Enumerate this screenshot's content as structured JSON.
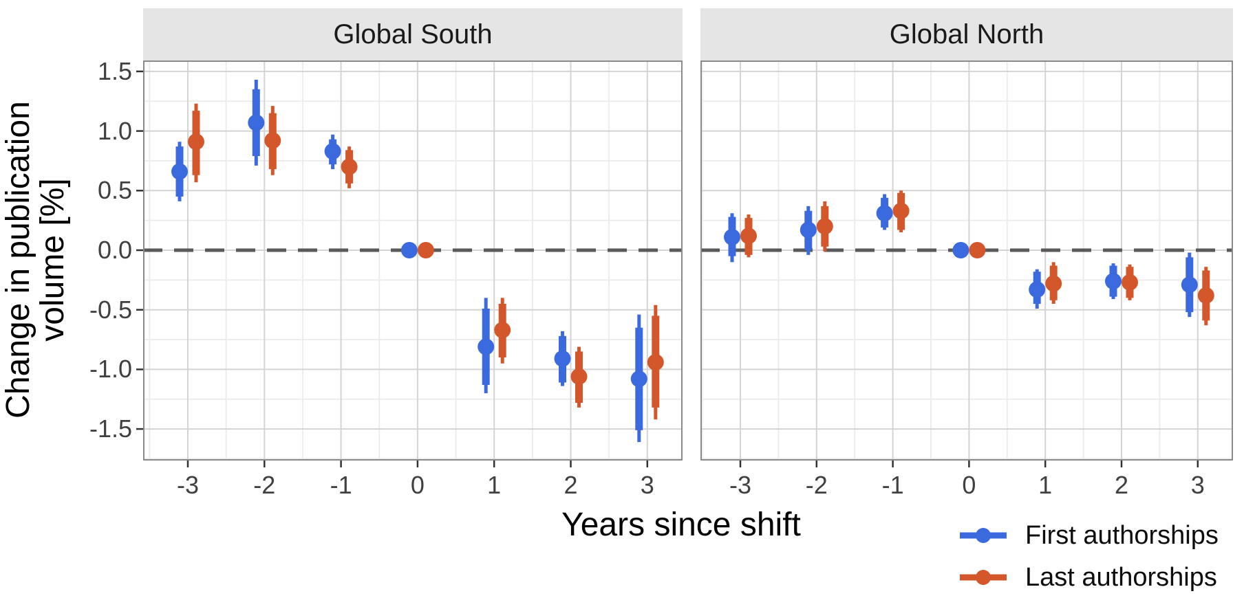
{
  "figure": {
    "y_axis_title_line1": "Change in publication",
    "y_axis_title_line2": "volume [%]",
    "x_axis_title": "Years since shift"
  },
  "legend": {
    "position": "bottom-right",
    "items": [
      {
        "label": "First authorships",
        "color": "#3B69DE"
      },
      {
        "label": "Last authorships",
        "color": "#D4572B"
      }
    ]
  },
  "chart_data": {
    "type": "scatter",
    "subtype": "pointrange-with-inner-outer-intervals",
    "title": "",
    "xlabel": "Years since shift",
    "ylabel": "Change in publication volume [%]",
    "categories": [
      -3,
      -2,
      -1,
      0,
      1,
      2,
      3
    ],
    "x_tick_labels": [
      "-3",
      "-2",
      "-1",
      "0",
      "1",
      "2",
      "3"
    ],
    "y_ticks": [
      1.5,
      1.0,
      0.5,
      0.0,
      -0.5,
      -1.0,
      -1.5
    ],
    "y_tick_labels": [
      "1.5",
      "1.0",
      "0.5",
      "0.0",
      "-0.5",
      "-1.0",
      "-1.5"
    ],
    "ylim": [
      -1.76,
      1.59
    ],
    "grid": true,
    "reference_line_y": 0,
    "reference_line_style": "dashed",
    "legend_position": "bottom-right",
    "facets": [
      {
        "label": "Global South",
        "series": [
          {
            "name": "First authorships",
            "color": "#3B69DE",
            "points": [
              {
                "x": -3,
                "y": 0.66,
                "inner": [
                  0.45,
                  0.87
                ],
                "outer": [
                  0.41,
                  0.91
                ]
              },
              {
                "x": -2,
                "y": 1.07,
                "inner": [
                  0.79,
                  1.35
                ],
                "outer": [
                  0.71,
                  1.43
                ]
              },
              {
                "x": -1,
                "y": 0.83,
                "inner": [
                  0.72,
                  0.93
                ],
                "outer": [
                  0.68,
                  0.97
                ]
              },
              {
                "x": 0,
                "y": 0.0,
                "inner": [
                  0.0,
                  0.0
                ],
                "outer": [
                  0.0,
                  0.0
                ]
              },
              {
                "x": 1,
                "y": -0.81,
                "inner": [
                  -1.13,
                  -0.49
                ],
                "outer": [
                  -1.2,
                  -0.4
                ]
              },
              {
                "x": 2,
                "y": -0.91,
                "inner": [
                  -1.11,
                  -0.72
                ],
                "outer": [
                  -1.14,
                  -0.68
                ]
              },
              {
                "x": 3,
                "y": -1.08,
                "inner": [
                  -1.51,
                  -0.65
                ],
                "outer": [
                  -1.61,
                  -0.54
                ]
              }
            ]
          },
          {
            "name": "Last authorships",
            "color": "#D4572B",
            "points": [
              {
                "x": -3,
                "y": 0.91,
                "inner": [
                  0.63,
                  1.17
                ],
                "outer": [
                  0.57,
                  1.23
                ]
              },
              {
                "x": -2,
                "y": 0.92,
                "inner": [
                  0.68,
                  1.15
                ],
                "outer": [
                  0.63,
                  1.21
                ]
              },
              {
                "x": -1,
                "y": 0.7,
                "inner": [
                  0.56,
                  0.84
                ],
                "outer": [
                  0.52,
                  0.87
                ]
              },
              {
                "x": 0,
                "y": 0.0,
                "inner": [
                  0.0,
                  0.0
                ],
                "outer": [
                  0.0,
                  0.0
                ]
              },
              {
                "x": 1,
                "y": -0.67,
                "inner": [
                  -0.9,
                  -0.45
                ],
                "outer": [
                  -0.95,
                  -0.4
                ]
              },
              {
                "x": 2,
                "y": -1.06,
                "inner": [
                  -1.28,
                  -0.85
                ],
                "outer": [
                  -1.32,
                  -0.81
                ]
              },
              {
                "x": 3,
                "y": -0.94,
                "inner": [
                  -1.32,
                  -0.55
                ],
                "outer": [
                  -1.42,
                  -0.46
                ]
              }
            ]
          }
        ]
      },
      {
        "label": "Global North",
        "series": [
          {
            "name": "First authorships",
            "color": "#3B69DE",
            "points": [
              {
                "x": -3,
                "y": 0.11,
                "inner": [
                  -0.05,
                  0.28
                ],
                "outer": [
                  -0.1,
                  0.31
                ]
              },
              {
                "x": -2,
                "y": 0.17,
                "inner": [
                  0.0,
                  0.33
                ],
                "outer": [
                  -0.04,
                  0.37
                ]
              },
              {
                "x": -1,
                "y": 0.31,
                "inner": [
                  0.19,
                  0.44
                ],
                "outer": [
                  0.17,
                  0.47
                ]
              },
              {
                "x": 0,
                "y": 0.0,
                "inner": [
                  0.0,
                  0.0
                ],
                "outer": [
                  0.0,
                  0.0
                ]
              },
              {
                "x": 1,
                "y": -0.33,
                "inner": [
                  -0.45,
                  -0.18
                ],
                "outer": [
                  -0.49,
                  -0.16
                ]
              },
              {
                "x": 2,
                "y": -0.26,
                "inner": [
                  -0.39,
                  -0.13
                ],
                "outer": [
                  -0.41,
                  -0.11
                ]
              },
              {
                "x": 3,
                "y": -0.29,
                "inner": [
                  -0.52,
                  -0.06
                ],
                "outer": [
                  -0.56,
                  -0.02
                ]
              }
            ]
          },
          {
            "name": "Last authorships",
            "color": "#D4572B",
            "points": [
              {
                "x": -3,
                "y": 0.12,
                "inner": [
                  -0.04,
                  0.27
                ],
                "outer": [
                  -0.06,
                  0.3
                ]
              },
              {
                "x": -2,
                "y": 0.2,
                "inner": [
                  0.03,
                  0.37
                ],
                "outer": [
                  -0.01,
                  0.41
                ]
              },
              {
                "x": -1,
                "y": 0.33,
                "inner": [
                  0.17,
                  0.48
                ],
                "outer": [
                  0.15,
                  0.5
                ]
              },
              {
                "x": 0,
                "y": 0.0,
                "inner": [
                  0.0,
                  0.0
                ],
                "outer": [
                  0.0,
                  0.0
                ]
              },
              {
                "x": 1,
                "y": -0.28,
                "inner": [
                  -0.42,
                  -0.13
                ],
                "outer": [
                  -0.45,
                  -0.1
                ]
              },
              {
                "x": 2,
                "y": -0.27,
                "inner": [
                  -0.4,
                  -0.14
                ],
                "outer": [
                  -0.42,
                  -0.12
                ]
              },
              {
                "x": 3,
                "y": -0.38,
                "inner": [
                  -0.59,
                  -0.17
                ],
                "outer": [
                  -0.63,
                  -0.14
                ]
              }
            ]
          }
        ]
      }
    ]
  }
}
